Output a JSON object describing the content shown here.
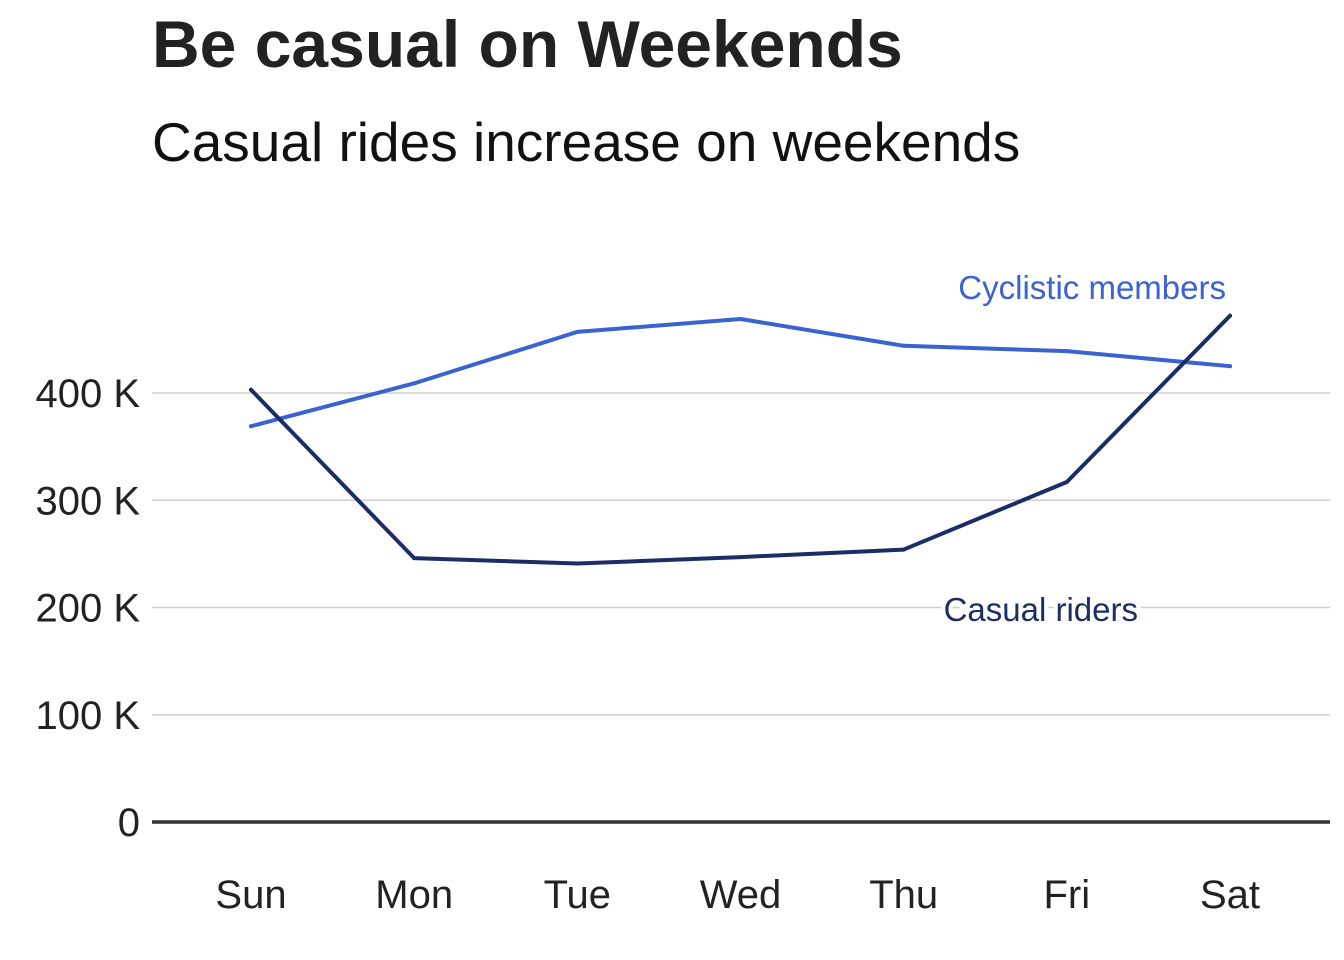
{
  "chart_data": {
    "type": "line",
    "title": "Be casual on Weekends",
    "subtitle": "Casual rides increase on weekends",
    "categories": [
      "Sun",
      "Mon",
      "Tue",
      "Wed",
      "Thu",
      "Fri",
      "Sat"
    ],
    "series": [
      {
        "name": "Cyclistic members",
        "color": "#3a62d0",
        "values": [
          369000,
          409000,
          457000,
          469000,
          444000,
          439000,
          425000
        ]
      },
      {
        "name": "Casual riders",
        "color": "#1c2d66",
        "values": [
          403000,
          246000,
          241000,
          247000,
          254000,
          317000,
          472000
        ]
      }
    ],
    "yticks": [
      0,
      100000,
      200000,
      300000,
      400000
    ],
    "ytick_labels": [
      "0",
      "100 K",
      "200 K",
      "300 K",
      "400 K"
    ],
    "ylim": [
      0,
      500000
    ],
    "grid": true,
    "legend": "direct-labels"
  }
}
